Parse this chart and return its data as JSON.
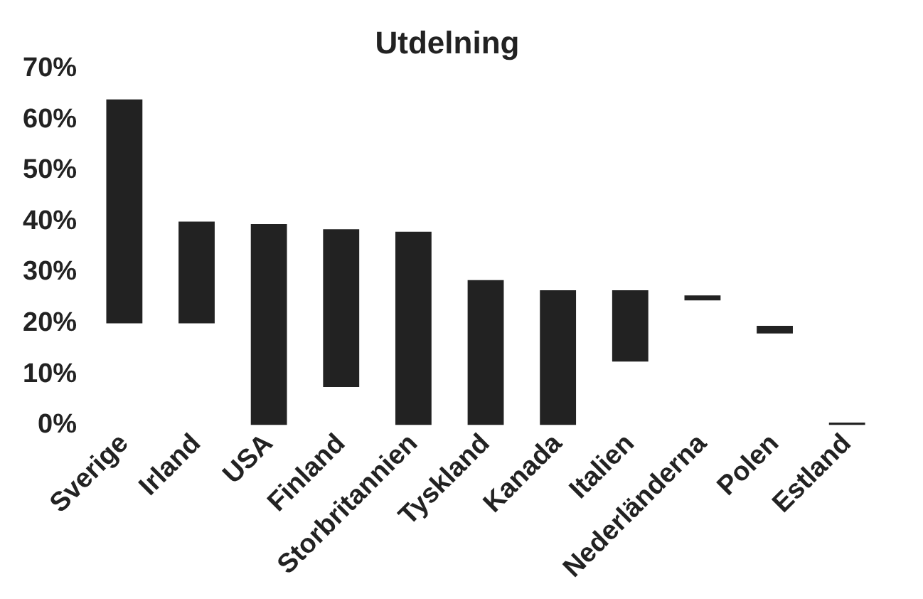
{
  "chart_data": {
    "type": "bar",
    "title": "Utdelning",
    "categories": [
      "Sverige",
      "Irland",
      "USA",
      "Finland",
      "Storbritannien",
      "Tyskland",
      "Kanada",
      "Italien",
      "Nederländerna",
      "Polen",
      "Estland"
    ],
    "base": [
      20,
      20,
      0,
      7.5,
      0,
      0,
      0,
      12.5,
      24.5,
      18,
      0
    ],
    "values": [
      44,
      20,
      39.5,
      31,
      38,
      28.5,
      26.5,
      14,
      1,
      1.5,
      0.5
    ],
    "color": "#222222",
    "ylim": [
      0,
      70
    ],
    "yticks": [
      {
        "value": 0,
        "label": "0%"
      },
      {
        "value": 10,
        "label": "10%"
      },
      {
        "value": 20,
        "label": "20%"
      },
      {
        "value": 30,
        "label": "30%"
      },
      {
        "value": 40,
        "label": "40%"
      },
      {
        "value": 50,
        "label": "50%"
      },
      {
        "value": 60,
        "label": "60%"
      },
      {
        "value": 70,
        "label": "70%"
      }
    ],
    "grid": false,
    "legend": false
  }
}
